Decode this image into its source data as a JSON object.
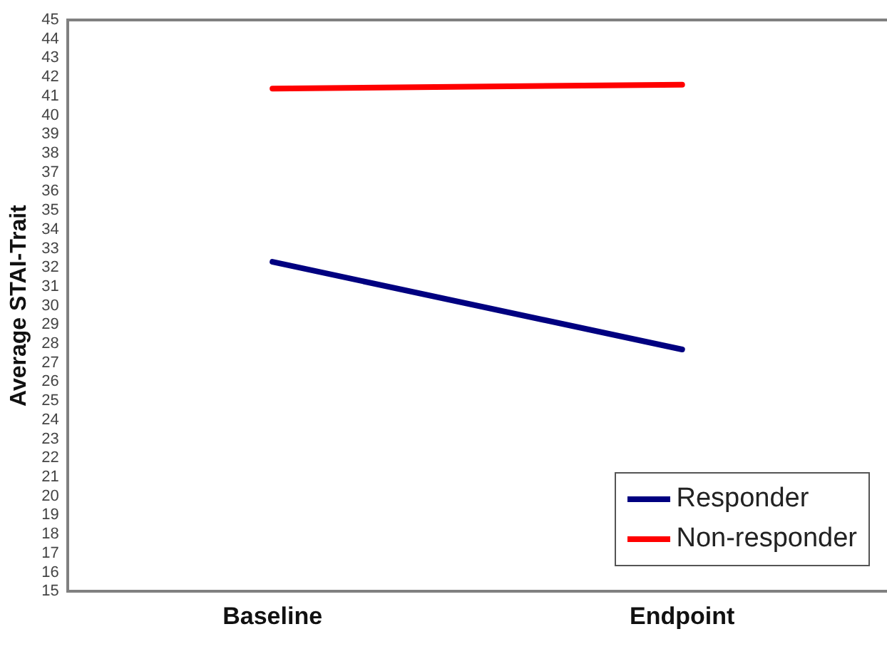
{
  "chart_data": {
    "type": "line",
    "ylabel": "Average STAI-Trait",
    "categories": [
      "Baseline",
      "Endpoint"
    ],
    "series": [
      {
        "name": "Responder",
        "color": "#000080",
        "values": [
          32.3,
          27.7
        ]
      },
      {
        "name": "Non-responder",
        "color": "#ff0000",
        "values": [
          41.4,
          41.6
        ]
      }
    ],
    "ylim": [
      15,
      45
    ],
    "yticks": [
      15,
      16,
      17,
      18,
      19,
      20,
      21,
      22,
      23,
      24,
      25,
      26,
      27,
      28,
      29,
      30,
      31,
      32,
      33,
      34,
      35,
      36,
      37,
      38,
      39,
      40,
      41,
      42,
      43,
      44,
      45
    ],
    "grid": false,
    "legend": "bottom right",
    "marker": "none",
    "line_style": "solid"
  }
}
